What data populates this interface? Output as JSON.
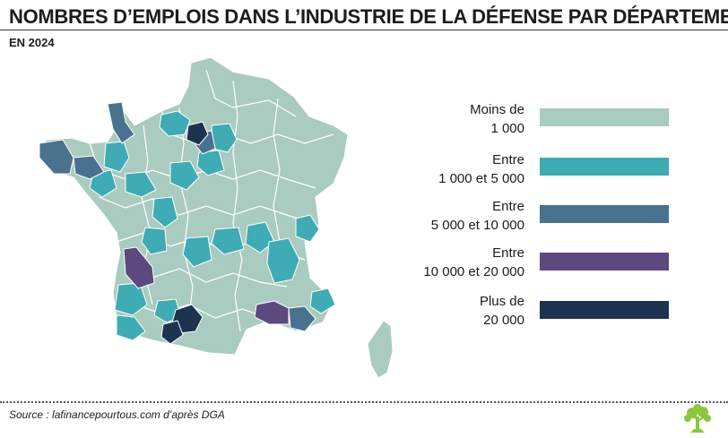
{
  "header": {
    "title": "NOMBRES D’EMPLOIS DANS L’INDUSTRIE DE LA DÉFENSE PAR DÉPARTEMENT",
    "subtitle": "EN 2024"
  },
  "colors": {
    "c1": "#a9cbc0",
    "c2": "#3fabb4",
    "c3": "#4a718d",
    "c4": "#5c4a7e",
    "c5": "#1d3350",
    "border": "#ffffff"
  },
  "legend": [
    {
      "line1": "Moins de",
      "line2": "1 000",
      "color": "#a9cbc0"
    },
    {
      "line1": "Entre",
      "line2": "1 000 et 5 000",
      "color": "#3fabb4"
    },
    {
      "line1": "Entre",
      "line2": "5 000 et 10 000",
      "color": "#4a718d"
    },
    {
      "line1": "Entre",
      "line2": "10 000 et 20 000",
      "color": "#5c4a7e"
    },
    {
      "line1": "Plus de",
      "line2": "20 000",
      "color": "#1d3350"
    }
  ],
  "footer": {
    "source": "Source : lafinancepourtous.com d’après DGA"
  }
}
